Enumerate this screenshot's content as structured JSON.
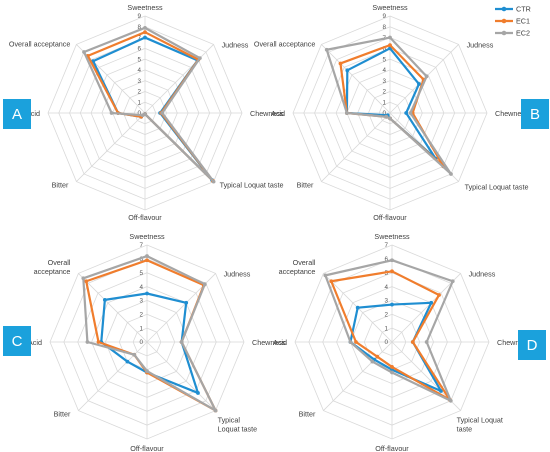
{
  "colors": {
    "CTR": "#1f8ed1",
    "EC1": "#f07d2d",
    "EC2": "#a6a6a6",
    "grid": "#d9d9d9",
    "badge": "#1ba1dc"
  },
  "legend": [
    {
      "name": "CTR",
      "icon": "line-marker-icon"
    },
    {
      "name": "EC1",
      "icon": "line-marker-icon"
    },
    {
      "name": "EC2",
      "icon": "line-marker-icon"
    }
  ],
  "chart_data": [
    {
      "type": "radar",
      "panel": "A",
      "axes": [
        "Sweetness",
        "Judness",
        "Chewness",
        "Typical Loquat taste",
        "Off-flavour",
        "Bitter",
        "Acid",
        "Overall acceptance"
      ],
      "ticks": [
        "0",
        "1",
        "2",
        "3",
        "4",
        "5",
        "6",
        "7",
        "8",
        "9"
      ],
      "rlim": [
        0,
        9
      ],
      "series": [
        {
          "name": "CTR",
          "values": [
            7.0,
            6.9,
            1.4,
            8.8,
            0.1,
            0.5,
            2.5,
            6.8
          ]
        },
        {
          "name": "EC1",
          "values": [
            7.5,
            7.0,
            1.5,
            8.9,
            0.1,
            0.5,
            2.5,
            7.5
          ]
        },
        {
          "name": "EC2",
          "values": [
            7.9,
            7.2,
            1.6,
            9.0,
            0.1,
            0.3,
            3.1,
            8.0
          ]
        }
      ]
    },
    {
      "type": "radar",
      "panel": "B",
      "axes": [
        "Sweetness",
        "Judness",
        "Chewness",
        "Typical Loquat taste",
        "Off-flavour",
        "Bitter",
        "Acid",
        "Overall acceptance"
      ],
      "ticks": [
        "0",
        "1",
        "2",
        "3",
        "4",
        "5",
        "6",
        "7",
        "8",
        "9"
      ],
      "rlim": [
        0,
        9
      ],
      "series": [
        {
          "name": "CTR",
          "values": [
            6.0,
            3.8,
            1.5,
            6.0,
            0.5,
            0.3,
            4.0,
            5.6
          ]
        },
        {
          "name": "EC1",
          "values": [
            6.3,
            4.4,
            2.1,
            7.0,
            0.5,
            0.5,
            4.0,
            6.5
          ]
        },
        {
          "name": "EC2",
          "values": [
            7.0,
            4.8,
            1.9,
            8.0,
            0.5,
            0.5,
            4.0,
            8.3
          ]
        }
      ]
    },
    {
      "type": "radar",
      "panel": "C",
      "axes": [
        "Sweetness",
        "Judness",
        "Chewness",
        "Typical Loquat taste",
        "Off-flavour",
        "Bitter",
        "Acid",
        "Overall acceptance"
      ],
      "axes_display": [
        "Sweetness",
        "Judness",
        "Chewness",
        "Typical|Loquat taste",
        "Off-flavour",
        "Bitter",
        "Acid",
        "Overall|acceptance"
      ],
      "ticks": [
        "0",
        "1",
        "2",
        "3",
        "4",
        "5",
        "6",
        "7"
      ],
      "rlim": [
        0,
        7
      ],
      "series": [
        {
          "name": "CTR",
          "values": [
            3.5,
            4.0,
            2.5,
            5.2,
            2.2,
            2.0,
            3.3,
            4.3
          ]
        },
        {
          "name": "EC1",
          "values": [
            5.9,
            5.8,
            2.5,
            7.0,
            2.2,
            1.3,
            3.5,
            6.2
          ]
        },
        {
          "name": "EC2",
          "values": [
            6.2,
            5.9,
            2.5,
            7.0,
            2.1,
            1.3,
            4.3,
            6.5
          ]
        }
      ]
    },
    {
      "type": "radar",
      "panel": "D",
      "axes": [
        "Sweetness",
        "Judness",
        "Chewness",
        "Typical Loquat taste",
        "Off-flavour",
        "Bitter",
        "Acid",
        "Overall acceptance"
      ],
      "axes_display": [
        "Sweetness",
        "Judness",
        "Chewness",
        "Typical Loquat|taste",
        "Off-flavour",
        "Bitter",
        "Acid",
        "Overall|acceptance"
      ],
      "ticks": [
        "0",
        "1",
        "2",
        "3",
        "4",
        "5",
        "6",
        "7"
      ],
      "rlim": [
        0,
        7
      ],
      "series": [
        {
          "name": "CTR",
          "values": [
            2.7,
            4.0,
            1.5,
            5.0,
            2.0,
            1.8,
            3.0,
            3.5
          ]
        },
        {
          "name": "EC1",
          "values": [
            5.1,
            4.8,
            1.5,
            5.9,
            1.8,
            1.5,
            2.6,
            6.2
          ]
        },
        {
          "name": "EC2",
          "values": [
            5.9,
            6.2,
            2.5,
            6.0,
            2.2,
            2.0,
            3.0,
            6.8
          ]
        }
      ]
    }
  ]
}
